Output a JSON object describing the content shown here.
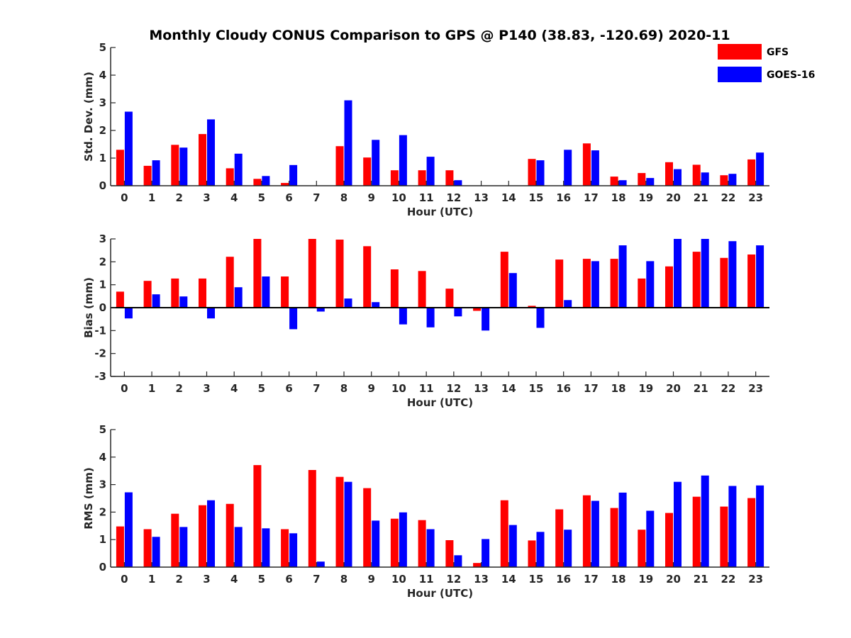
{
  "chart_title": "Monthly Cloudy CONUS Comparison to GPS @ P140 (38.83, -120.69) 2020-11",
  "legend": {
    "placement": "top-right",
    "entries": [
      {
        "name": "GFS",
        "color": "#ff0000"
      },
      {
        "name": "GOES-16",
        "color": "#0000ff"
      }
    ]
  },
  "chart_data": [
    {
      "type": "bar",
      "xlabel": "Hour (UTC)",
      "ylabel": "Std. Dev. (mm)",
      "ylim": [
        0,
        5
      ],
      "yticks": [
        "0",
        "1",
        "2",
        "3",
        "4",
        "5"
      ],
      "categories": [
        "0",
        "1",
        "2",
        "3",
        "4",
        "5",
        "6",
        "7",
        "8",
        "9",
        "10",
        "11",
        "12",
        "13",
        "14",
        "15",
        "16",
        "17",
        "18",
        "19",
        "20",
        "21",
        "22",
        "23"
      ],
      "series": [
        {
          "name": "GFS",
          "color": "#ff0000",
          "values": [
            1.3,
            0.72,
            1.48,
            1.87,
            0.63,
            0.25,
            0.1,
            0,
            1.43,
            1.02,
            0.56,
            0.56,
            0.56,
            0,
            0,
            0.97,
            0,
            1.53,
            0.33,
            0.46,
            0.85,
            0.76,
            0.38,
            0.95
          ]
        },
        {
          "name": "GOES-16",
          "color": "#0000ff",
          "values": [
            2.68,
            0.92,
            1.38,
            2.4,
            1.16,
            0.35,
            0.75,
            0,
            3.09,
            1.66,
            1.83,
            1.05,
            0.2,
            0,
            0,
            0.92,
            1.3,
            1.28,
            0.2,
            0.28,
            0.6,
            0.48,
            0.43,
            1.2
          ]
        }
      ]
    },
    {
      "type": "bar",
      "xlabel": "Hour (UTC)",
      "ylabel": "Bias (mm)",
      "ylim": [
        -3,
        3
      ],
      "yticks": [
        "-3",
        "-2",
        "-1",
        "0",
        "1",
        "2",
        "3"
      ],
      "categories": [
        "0",
        "1",
        "2",
        "3",
        "4",
        "5",
        "6",
        "7",
        "8",
        "9",
        "10",
        "11",
        "12",
        "13",
        "14",
        "15",
        "16",
        "17",
        "18",
        "19",
        "20",
        "21",
        "22",
        "23"
      ],
      "series": [
        {
          "name": "GFS",
          "color": "#ff0000",
          "values": [
            0.7,
            1.17,
            1.27,
            1.27,
            2.22,
            3.0,
            1.36,
            3.0,
            2.97,
            2.68,
            1.67,
            1.6,
            0.83,
            -0.14,
            2.44,
            0.08,
            2.1,
            2.13,
            2.13,
            1.27,
            1.8,
            2.44,
            2.17,
            2.32
          ]
        },
        {
          "name": "GOES-16",
          "color": "#0000ff",
          "values": [
            -0.47,
            0.58,
            0.49,
            -0.47,
            0.89,
            1.36,
            -0.94,
            -0.17,
            0.4,
            0.24,
            -0.73,
            -0.86,
            -0.38,
            -1.0,
            1.51,
            -0.88,
            0.33,
            2.03,
            2.72,
            2.03,
            3.0,
            3.0,
            2.9,
            2.72
          ]
        }
      ]
    },
    {
      "type": "bar",
      "xlabel": "Hour (UTC)",
      "ylabel": "RMS (mm)",
      "ylim": [
        0,
        5
      ],
      "yticks": [
        "0",
        "1",
        "2",
        "3",
        "4",
        "5"
      ],
      "categories": [
        "0",
        "1",
        "2",
        "3",
        "4",
        "5",
        "6",
        "7",
        "8",
        "9",
        "10",
        "11",
        "12",
        "13",
        "14",
        "15",
        "16",
        "17",
        "18",
        "19",
        "20",
        "21",
        "22",
        "23"
      ],
      "series": [
        {
          "name": "GFS",
          "color": "#ff0000",
          "values": [
            1.48,
            1.38,
            1.94,
            2.25,
            2.3,
            3.71,
            1.38,
            3.53,
            3.28,
            2.87,
            1.76,
            1.71,
            0.98,
            0.15,
            2.43,
            0.97,
            2.1,
            2.61,
            2.15,
            1.36,
            1.97,
            2.56,
            2.2,
            2.51
          ]
        },
        {
          "name": "GOES-16",
          "color": "#0000ff",
          "values": [
            2.72,
            1.1,
            1.46,
            2.43,
            1.46,
            1.41,
            1.23,
            0.2,
            3.1,
            1.69,
            1.99,
            1.38,
            0.43,
            1.02,
            1.53,
            1.28,
            1.36,
            2.41,
            2.71,
            2.05,
            3.1,
            3.33,
            2.95,
            2.97
          ]
        }
      ]
    }
  ]
}
